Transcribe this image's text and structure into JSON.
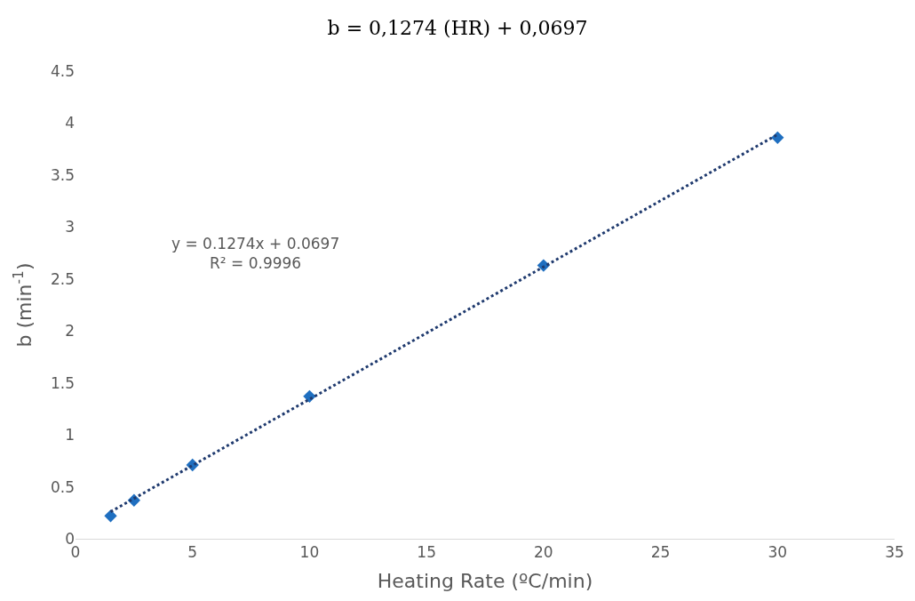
{
  "chart_data": {
    "type": "scatter",
    "title": "b = 0,1274 (HR) + 0,0697",
    "xlabel": "Heating Rate (ºC/min)",
    "ylabel": "b (min$^{-1}$)",
    "series": [
      {
        "color": "#1f6fc0",
        "marker": "diamond",
        "x": [
          1.5,
          2.5,
          5,
          10,
          20,
          30
        ],
        "values": [
          0.22,
          0.37,
          0.71,
          1.37,
          2.63,
          3.86
        ]
      },
      {
        "type": "line",
        "color": "#1f3a6e",
        "marker": "none",
        "line_style": "dotted",
        "x": [
          1.5,
          30
        ],
        "values": [
          0.26,
          3.89
        ]
      }
    ],
    "annotations": [
      "y = 0.1274x + 0.0697\nR² = 0.9996"
    ],
    "xlim": [
      0,
      35
    ],
    "xticks": [
      0,
      5,
      10,
      15,
      20,
      25,
      30,
      35
    ],
    "ylim": [
      0,
      4.5
    ],
    "yticks": [
      0,
      0.5,
      1,
      1.5,
      2,
      2.5,
      3,
      3.5,
      4,
      4.5
    ]
  }
}
